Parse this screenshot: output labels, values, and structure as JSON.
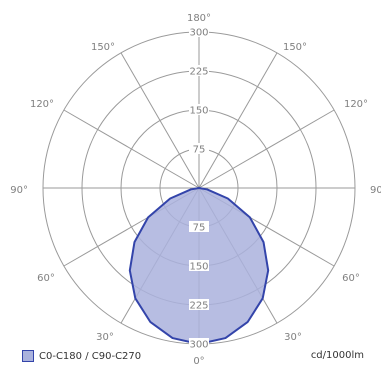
{
  "chart_data": {
    "type": "polar",
    "radial_ticks": [
      "75",
      "150",
      "225",
      "300"
    ],
    "radial_values": [
      75,
      150,
      225,
      300
    ],
    "r_max": 300,
    "angle_labels": {
      "top": "180°",
      "upper_left": "150°",
      "upper_right": "150°",
      "mid_left": "120°",
      "mid_right": "120°",
      "left": "90°",
      "right": "90°",
      "lower_left": "60°",
      "lower_right": "60°",
      "bottom_left": "30°",
      "bottom_right": "30°",
      "bottom": "0°"
    },
    "series": [
      {
        "name": "C0-C180 / C90-C270",
        "color": "#3344aa",
        "fill": "#aab2dd",
        "gamma": [
          0,
          10,
          20,
          30,
          40,
          50,
          60,
          70,
          80,
          90
        ],
        "values": [
          300,
          293,
          274,
          245,
          207,
          162,
          113,
          59,
          16,
          0
        ]
      }
    ],
    "unit_label": "cd/1000lm"
  }
}
